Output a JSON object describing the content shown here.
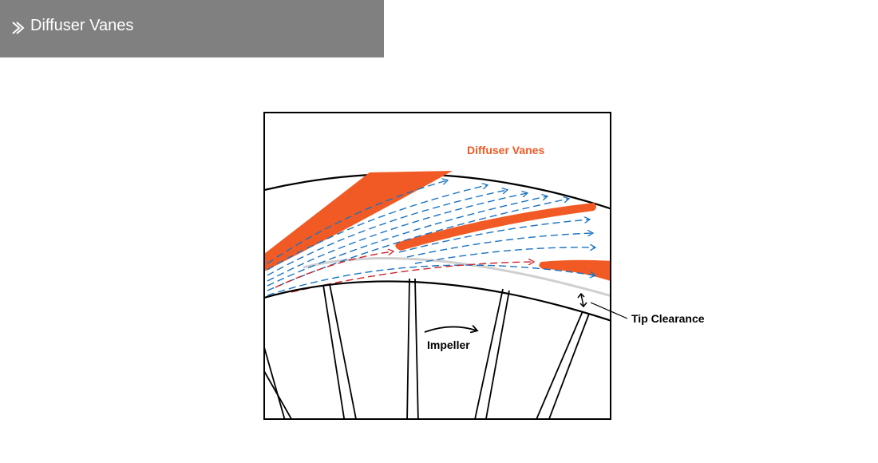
{
  "header": {
    "title": "Diffuser Vanes"
  },
  "diagram": {
    "vane_label": "Diffuser Vanes",
    "impeller_label": "Impeller",
    "tip_clearance_label": "Tip Clearance"
  }
}
